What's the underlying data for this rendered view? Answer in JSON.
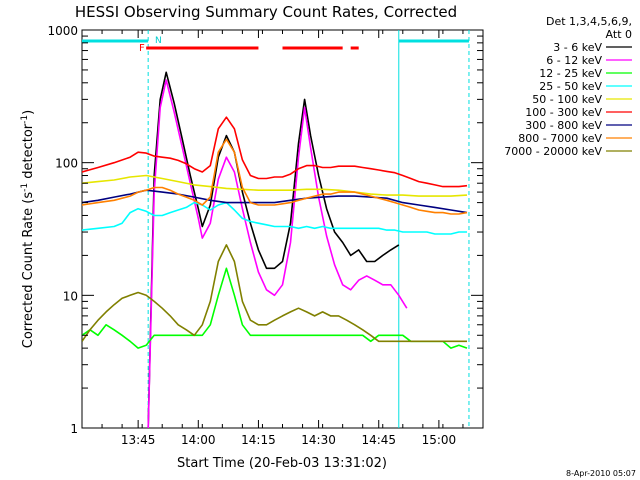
{
  "chart_data": {
    "type": "line",
    "title": "HESSI Observing Summary Count Rates, Corrected",
    "xlabel": "Start Time (20-Feb-03 13:31:02)",
    "ylabel": "Corrected Count Rate (s",
    "ylabel_sup1": "-1",
    "ylabel_mid": " detector",
    "ylabel_sup2": "-1",
    "ylabel_end": ")",
    "footer": "8-Apr-2010 05:07",
    "x_unit": "minutes after 13:31:02",
    "xlim": [
      0,
      100
    ],
    "ylim": [
      1,
      1000
    ],
    "yscale": "log",
    "x_ticks": [
      {
        "x": 14,
        "label": "13:45"
      },
      {
        "x": 29,
        "label": "14:00"
      },
      {
        "x": 44,
        "label": "14:15"
      },
      {
        "x": 59,
        "label": "14:30"
      },
      {
        "x": 74,
        "label": "14:45"
      },
      {
        "x": 89,
        "label": "15:00"
      }
    ],
    "y_ticks": [
      {
        "y": 1,
        "label": "1"
      },
      {
        "y": 10,
        "label": "10"
      },
      {
        "y": 100,
        "label": "100"
      },
      {
        "y": 1000,
        "label": "1000"
      }
    ],
    "legend_header": [
      "Det 1,3,4,5,6,9,",
      "Att 0"
    ],
    "flags": {
      "F_label": "F",
      "N_label": "N",
      "flare_segments": [
        [
          16,
          44
        ],
        [
          50,
          65
        ],
        [
          67,
          69
        ]
      ],
      "night_segments": [
        [
          0,
          16.5
        ],
        [
          79,
          96.5
        ]
      ],
      "night_boundaries": [
        16.5,
        79,
        96.5
      ]
    },
    "series": [
      {
        "name": "3 - 6 keV",
        "color": "#000000",
        "x": [
          16.5,
          18,
          19.5,
          21,
          23,
          25,
          27,
          29,
          30,
          32,
          34,
          36,
          38,
          40,
          42,
          44,
          46,
          48,
          50,
          52,
          54,
          55.5,
          57,
          59,
          61,
          63,
          65,
          67,
          69,
          71,
          73,
          75,
          77,
          79
        ],
        "y": [
          1,
          80,
          300,
          480,
          280,
          150,
          80,
          45,
          33,
          48,
          110,
          160,
          120,
          60,
          35,
          22,
          16,
          16,
          18,
          35,
          140,
          300,
          160,
          80,
          45,
          30,
          25,
          20,
          22,
          18,
          18,
          20,
          22,
          24
        ]
      },
      {
        "name": "6 - 12 keV",
        "color": "#ff00ff",
        "x": [
          16.5,
          18,
          19.5,
          21,
          23,
          25,
          27,
          29,
          30,
          32,
          34,
          36,
          38,
          40,
          42,
          44,
          46,
          48,
          50,
          52,
          54,
          55.5,
          57,
          59,
          61,
          63,
          65,
          67,
          69,
          71,
          73,
          75,
          77,
          79,
          81
        ],
        "y": [
          1,
          60,
          260,
          420,
          240,
          130,
          70,
          38,
          27,
          35,
          75,
          110,
          85,
          45,
          25,
          15,
          11,
          10,
          12,
          25,
          110,
          260,
          130,
          55,
          28,
          17,
          12,
          11,
          13,
          14,
          13,
          12,
          12,
          10,
          8
        ]
      },
      {
        "name": "12 - 25 keV",
        "color": "#00ff00",
        "x": [
          0,
          2,
          4,
          6,
          8,
          10,
          12,
          14,
          16,
          18,
          20,
          22,
          24,
          26,
          28,
          30,
          32,
          34,
          36,
          38,
          40,
          42,
          44,
          46,
          48,
          50,
          52,
          54,
          56,
          58,
          60,
          62,
          64,
          66,
          68,
          70,
          72,
          74,
          76,
          78,
          80,
          82,
          84,
          86,
          88,
          90,
          92,
          94,
          96
        ],
        "y": [
          5,
          5.5,
          5,
          6,
          5.5,
          5,
          4.5,
          4,
          4.2,
          5,
          5,
          5,
          5,
          5,
          5,
          5,
          6,
          10,
          16,
          10,
          6,
          5,
          5,
          5,
          5,
          5,
          5,
          5,
          5,
          5,
          5,
          5,
          5,
          5,
          5,
          5,
          4.5,
          5,
          5,
          5,
          5,
          4.5,
          4.5,
          4.5,
          4.5,
          4.5,
          4,
          4.2,
          4
        ]
      },
      {
        "name": "25 - 50 keV",
        "color": "#00ffff",
        "x": [
          0,
          4,
          8,
          10,
          12,
          14,
          16,
          18,
          20,
          22,
          24,
          26,
          28,
          30,
          32,
          34,
          36,
          38,
          40,
          42,
          44,
          46,
          48,
          50,
          52,
          54,
          56,
          58,
          60,
          62,
          64,
          66,
          68,
          70,
          72,
          74,
          76,
          78,
          80,
          82,
          84,
          86,
          88,
          90,
          92,
          94,
          96
        ],
        "y": [
          31,
          32,
          33,
          35,
          42,
          45,
          43,
          40,
          40,
          42,
          44,
          46,
          50,
          48,
          44,
          48,
          50,
          44,
          38,
          36,
          35,
          34,
          33,
          33,
          33,
          32,
          33,
          32,
          33,
          32,
          32,
          32,
          32,
          32,
          32,
          32,
          31,
          31,
          30,
          30,
          30,
          30,
          29,
          29,
          29,
          30,
          30
        ]
      },
      {
        "name": "50 - 100 keV",
        "color": "#e6e600",
        "x": [
          0,
          4,
          8,
          12,
          16,
          20,
          24,
          28,
          32,
          36,
          40,
          44,
          48,
          52,
          56,
          60,
          64,
          68,
          72,
          76,
          80,
          84,
          88,
          92,
          96
        ],
        "y": [
          70,
          72,
          74,
          78,
          80,
          76,
          72,
          68,
          66,
          64,
          63,
          62,
          62,
          62,
          63,
          63,
          62,
          60,
          58,
          57,
          57,
          56,
          56,
          56,
          57
        ]
      },
      {
        "name": "100 - 300 keV",
        "color": "#ff0000",
        "x": [
          0,
          4,
          8,
          12,
          14,
          16,
          18,
          20,
          22,
          24,
          26,
          28,
          30,
          32,
          34,
          36,
          38,
          40,
          42,
          44,
          46,
          48,
          50,
          52,
          54,
          56,
          58,
          60,
          62,
          64,
          66,
          68,
          70,
          72,
          74,
          76,
          78,
          80,
          82,
          84,
          86,
          88,
          90,
          92,
          94,
          96
        ],
        "y": [
          85,
          92,
          100,
          110,
          120,
          118,
          112,
          110,
          108,
          104,
          98,
          90,
          85,
          95,
          180,
          220,
          180,
          105,
          80,
          76,
          76,
          78,
          78,
          82,
          90,
          95,
          95,
          92,
          92,
          94,
          94,
          94,
          92,
          90,
          88,
          86,
          84,
          80,
          76,
          72,
          70,
          68,
          66,
          66,
          66,
          67
        ]
      },
      {
        "name": "300 - 800 keV",
        "color": "#000080",
        "x": [
          0,
          4,
          8,
          12,
          16,
          20,
          24,
          28,
          32,
          36,
          40,
          44,
          48,
          52,
          56,
          60,
          64,
          68,
          72,
          76,
          80,
          84,
          88,
          92,
          96
        ],
        "y": [
          50,
          52,
          55,
          58,
          62,
          60,
          58,
          55,
          52,
          50,
          50,
          50,
          50,
          52,
          54,
          55,
          56,
          56,
          55,
          54,
          50,
          48,
          46,
          44,
          42
        ]
      },
      {
        "name": "800 - 7000 keV",
        "color": "#ff8000",
        "x": [
          0,
          4,
          8,
          12,
          14,
          16,
          18,
          20,
          22,
          24,
          26,
          28,
          30,
          32,
          34,
          36,
          38,
          40,
          42,
          44,
          46,
          48,
          50,
          52,
          54,
          56,
          58,
          60,
          62,
          64,
          66,
          68,
          70,
          72,
          74,
          76,
          78,
          80,
          82,
          84,
          86,
          88,
          90,
          92,
          94,
          96
        ],
        "y": [
          48,
          50,
          52,
          56,
          60,
          62,
          65,
          65,
          62,
          58,
          55,
          52,
          48,
          55,
          120,
          150,
          120,
          65,
          50,
          48,
          48,
          48,
          49,
          50,
          52,
          54,
          56,
          58,
          58,
          60,
          60,
          60,
          58,
          56,
          54,
          52,
          50,
          48,
          46,
          44,
          43,
          42,
          42,
          41,
          41,
          42
        ]
      },
      {
        "name": "7000 - 20000 keV",
        "color": "#808000",
        "x": [
          0,
          2,
          4,
          6,
          8,
          10,
          12,
          14,
          16,
          18,
          20,
          22,
          24,
          26,
          28,
          30,
          32,
          34,
          36,
          38,
          40,
          42,
          44,
          46,
          48,
          50,
          52,
          54,
          56,
          58,
          60,
          62,
          64,
          66,
          68,
          70,
          72,
          74,
          76,
          78,
          80,
          82,
          84,
          86,
          88,
          90,
          92,
          94,
          96
        ],
        "y": [
          4.5,
          5.5,
          6.5,
          7.5,
          8.5,
          9.5,
          10,
          10.5,
          10,
          9,
          8,
          7,
          6,
          5.5,
          5,
          6,
          9,
          18,
          24,
          18,
          9,
          6.5,
          6,
          6,
          6.5,
          7,
          7.5,
          8,
          7.5,
          7,
          7.5,
          7,
          7,
          6.5,
          6,
          5.5,
          5,
          4.5,
          4.5,
          4.5,
          4.5,
          4.5,
          4.5,
          4.5,
          4.5,
          4.5,
          4.5,
          4.5,
          4.5
        ]
      }
    ]
  }
}
